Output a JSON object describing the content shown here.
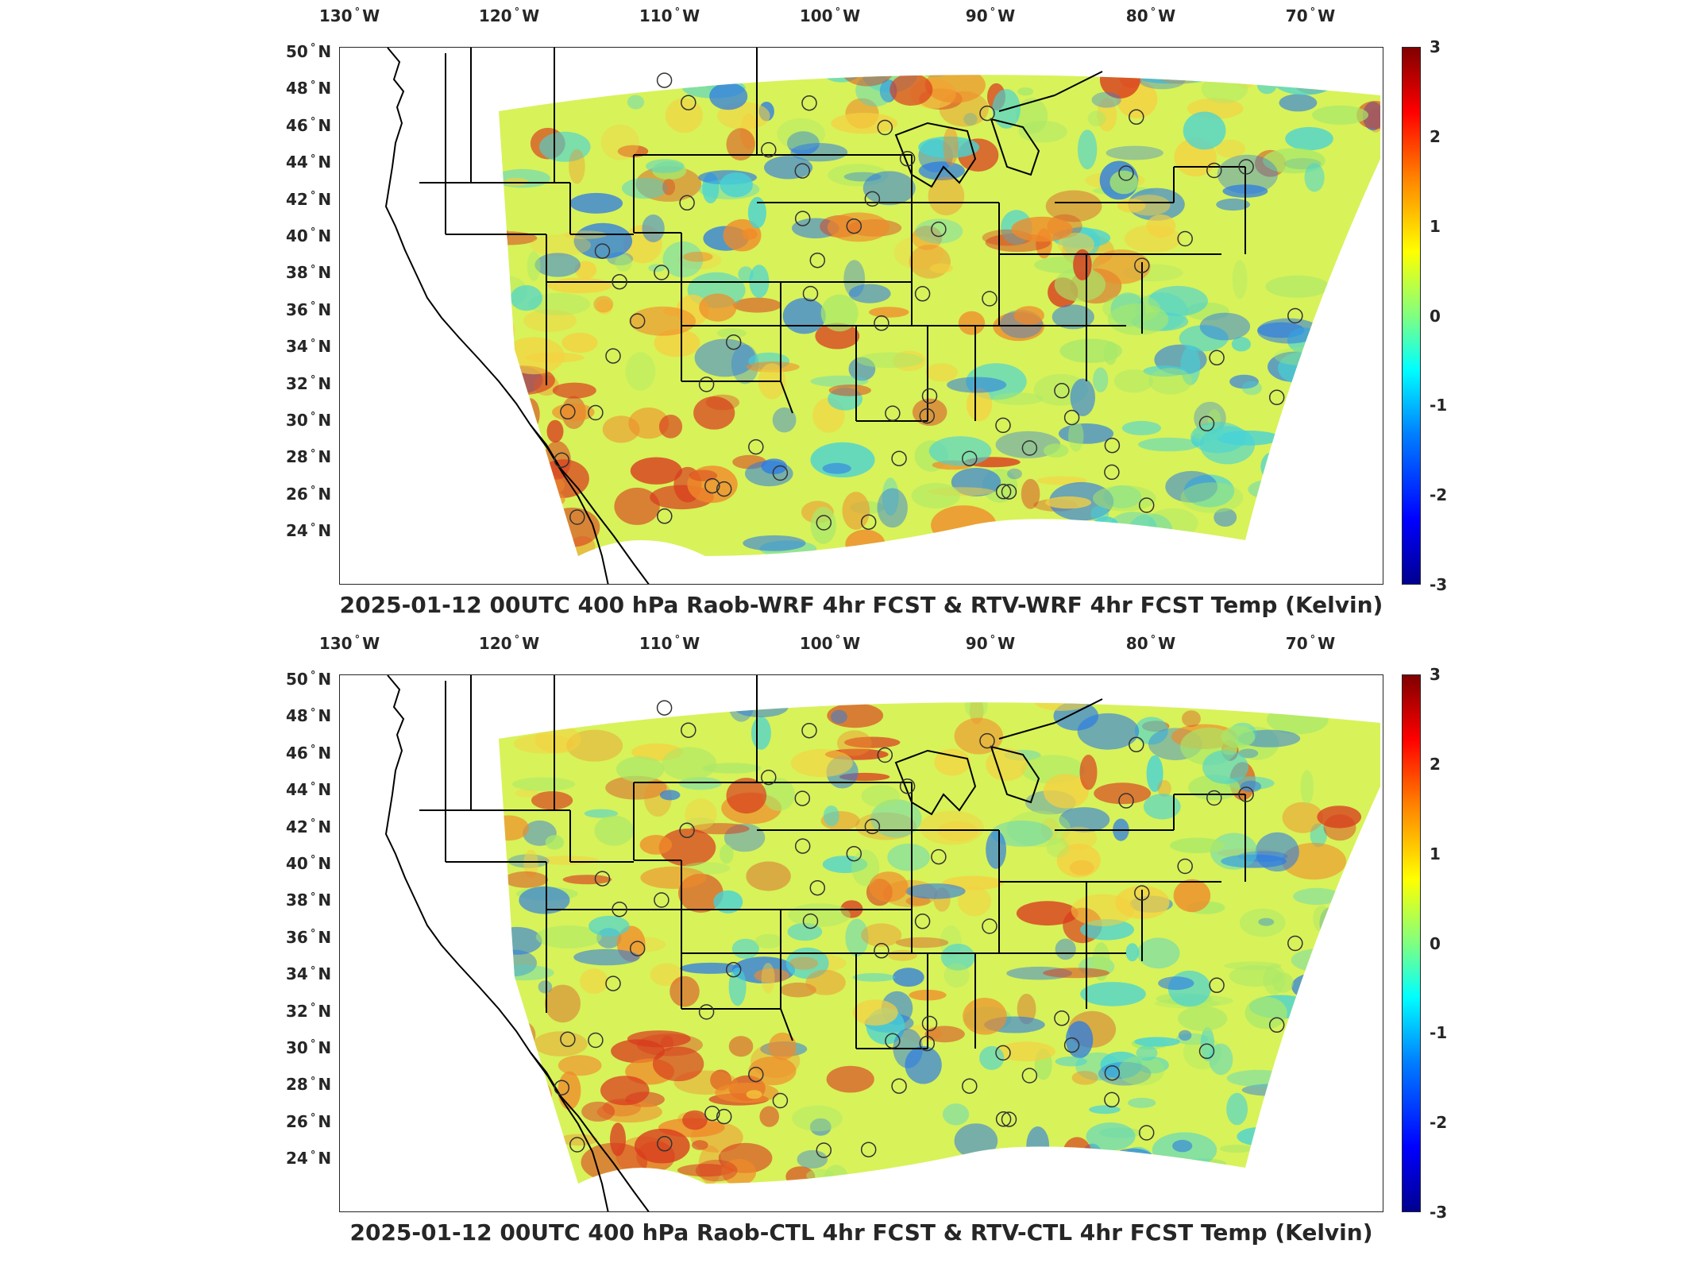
{
  "colorbar": {
    "ticks": [
      "3",
      "2",
      "1",
      "0",
      "-1",
      "-2",
      "-3"
    ],
    "range": [
      -3,
      3
    ],
    "colormap": "jet"
  },
  "axes": {
    "lon_ticks": [
      {
        "deg": "130",
        "hem": "W"
      },
      {
        "deg": "120",
        "hem": "W"
      },
      {
        "deg": "110",
        "hem": "W"
      },
      {
        "deg": "100",
        "hem": "W"
      },
      {
        "deg": "90",
        "hem": "W"
      },
      {
        "deg": "80",
        "hem": "W"
      },
      {
        "deg": "70",
        "hem": "W"
      }
    ],
    "lat_ticks": [
      {
        "deg": "50",
        "hem": "N"
      },
      {
        "deg": "48",
        "hem": "N"
      },
      {
        "deg": "46",
        "hem": "N"
      },
      {
        "deg": "44",
        "hem": "N"
      },
      {
        "deg": "42",
        "hem": "N"
      },
      {
        "deg": "40",
        "hem": "N"
      },
      {
        "deg": "38",
        "hem": "N"
      },
      {
        "deg": "36",
        "hem": "N"
      },
      {
        "deg": "34",
        "hem": "N"
      },
      {
        "deg": "32",
        "hem": "N"
      },
      {
        "deg": "30",
        "hem": "N"
      },
      {
        "deg": "28",
        "hem": "N"
      },
      {
        "deg": "26",
        "hem": "N"
      },
      {
        "deg": "24",
        "hem": "N"
      }
    ]
  },
  "panels": [
    {
      "title": "2025-01-12 00UTC 400 hPa Raob-WRF 4hr FCST & RTV-WRF 4hr FCST Temp (Kelvin)"
    },
    {
      "title": "2025-01-12 00UTC 400 hPa Raob-CTL 4hr FCST & RTV-CTL 4hr FCST Temp (Kelvin)"
    }
  ],
  "colors": {
    "field_base": "#d8f25a",
    "warm": "#f08a2a",
    "hot": "#d83a1e",
    "cool": "#45d2d8",
    "cold": "#2a7ae6",
    "station_outline": "#333333"
  }
}
